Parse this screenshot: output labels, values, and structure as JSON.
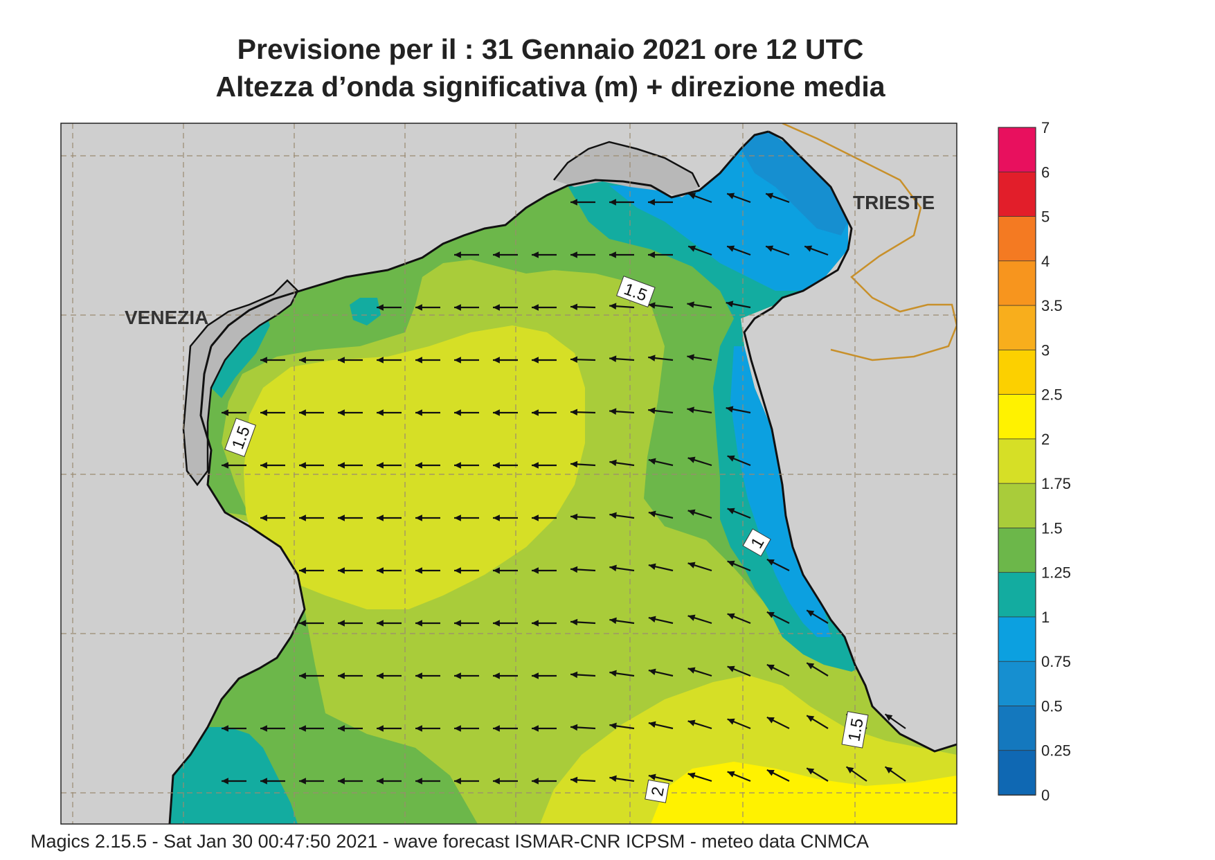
{
  "title_line1": "Previsione per il  :  31  Gennaio  2021   ore 12 UTC",
  "title_line2": "Altezza d’onda significativa (m) + direzione media",
  "footer": "Magics 2.15.5 - Sat Jan 30 00:47:50 2021 - wave forecast  ISMAR-CNR  ICPSM - meteo data   CNMCA",
  "cities": [
    {
      "name": "VENEZIA"
    },
    {
      "name": "TRIESTE"
    }
  ],
  "contour_labels": [
    "1.5",
    "1.5",
    "1",
    "1.5",
    "2"
  ],
  "legend": {
    "ticks": [
      "7",
      "6",
      "5",
      "4",
      "3.5",
      "3",
      "2.5",
      "2",
      "1.75",
      "1.5",
      "1.25",
      "1",
      "0.75",
      "0.5",
      "0.25",
      "0"
    ],
    "colors": [
      "#e8105e",
      "#e21e2a",
      "#f47a22",
      "#f7951e",
      "#f8ae1c",
      "#fcd000",
      "#fff200",
      "#d6df26",
      "#a9cc3a",
      "#6cb74a",
      "#13aca0",
      "#0ca0e0",
      "#168fd0",
      "#1478be",
      "#0f68b3"
    ]
  },
  "colors": {
    "land": "#cfcfcf",
    "sea_2_2_5": "#fff200",
    "sea_1_75_2": "#d6df26",
    "sea_1_5_1_75": "#a9cc3a",
    "sea_1_25_1_5": "#6cb74a",
    "sea_1_1_25": "#13aca0",
    "sea_0_75_1": "#0ca0e0",
    "sea_0_5_0_75": "#168fd0",
    "border": "#c8902a"
  },
  "wave_direction": "arrows pointing west / north-west"
}
